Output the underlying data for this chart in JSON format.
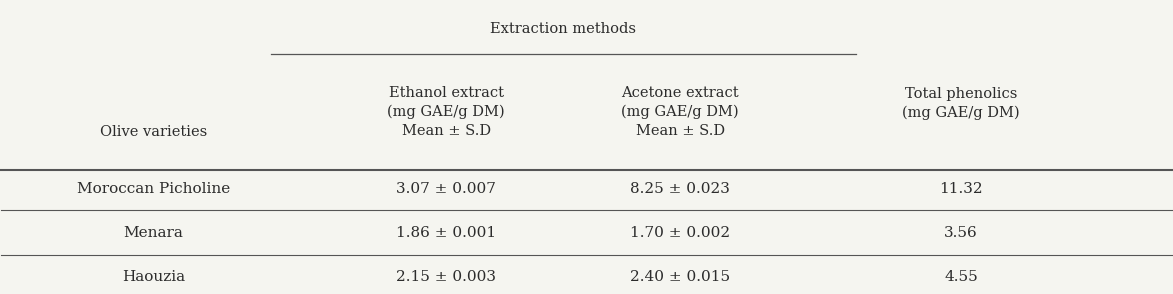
{
  "title_span": "Extraction methods",
  "col0_header": "Olive varieties",
  "col1_header": "Ethanol extract\n(mg GAE/g DM)\nMean ± S.D",
  "col2_header": "Acetone extract\n(mg GAE/g DM)\nMean ± S.D",
  "col3_header": "Total phenolics\n(mg GAE/g DM)",
  "rows": [
    [
      "Moroccan Picholine",
      "3.07 ± 0.007",
      "8.25 ± 0.023",
      "11.32"
    ],
    [
      "Menara",
      "1.86 ± 0.001",
      "1.70 ± 0.002",
      "3.56"
    ],
    [
      "Haouzia",
      "2.15 ± 0.003",
      "2.40 ± 0.015",
      "4.55"
    ]
  ],
  "bg_color": "#f5f5f0",
  "text_color": "#2c2c2c",
  "line_color": "#555555",
  "font_size_header": 10.5,
  "font_size_data": 11,
  "fig_width": 11.73,
  "fig_height": 2.94
}
